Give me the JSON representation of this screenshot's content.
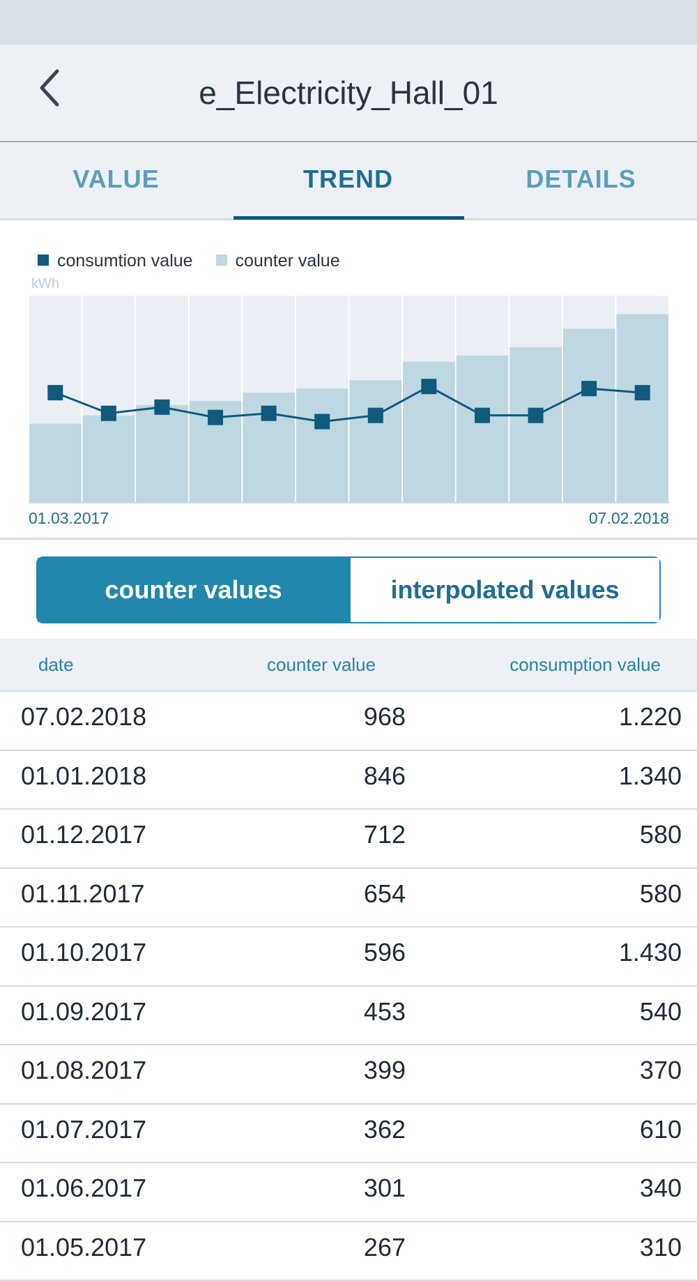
{
  "header": {
    "title": "e_Electricity_Hall_01",
    "back_icon": "chevron-left-icon"
  },
  "tabs": [
    {
      "label": "VALUE",
      "active": false
    },
    {
      "label": "TREND",
      "active": true
    },
    {
      "label": "DETAILS",
      "active": false
    }
  ],
  "chart": {
    "legend": [
      {
        "label": "consumtion value",
        "color": "#0f5a7d"
      },
      {
        "label": "counter value",
        "color": "#bed7e0"
      }
    ],
    "unit": "kWh",
    "start_date": "01.03.2017",
    "end_date": "07.02.2018"
  },
  "chart_data": {
    "type": "bar",
    "xlabel": "",
    "ylabel": "kWh",
    "series": [
      {
        "name": "counter value",
        "type": "bar",
        "color": "#bed7e0",
        "values": [
          38,
          42,
          47,
          49,
          53,
          55,
          59,
          68,
          71,
          75,
          84,
          91
        ]
      },
      {
        "name": "consumtion value",
        "type": "line",
        "color": "#0f5a7d",
        "values": [
          53,
          43,
          46,
          41,
          43,
          39,
          42,
          56,
          42,
          42,
          55,
          53
        ]
      }
    ],
    "ylim": [
      0,
      100
    ],
    "x_range": [
      "01.03.2017",
      "07.02.2018"
    ],
    "grid": false
  },
  "segmented": {
    "left_label": "counter values",
    "right_label": "interpolated values",
    "active": "counter values"
  },
  "table": {
    "headers": {
      "date": "date",
      "counter": "counter value",
      "consumption": "consumption value"
    },
    "rows": [
      {
        "date": "07.02.2018",
        "counter": "968",
        "consumption": "1.220"
      },
      {
        "date": "01.01.2018",
        "counter": "846",
        "consumption": "1.340"
      },
      {
        "date": "01.12.2017",
        "counter": "712",
        "consumption": "580"
      },
      {
        "date": "01.11.2017",
        "counter": "654",
        "consumption": "580"
      },
      {
        "date": "01.10.2017",
        "counter": "596",
        "consumption": "1.430"
      },
      {
        "date": "01.09.2017",
        "counter": "453",
        "consumption": "540"
      },
      {
        "date": "01.08.2017",
        "counter": "399",
        "consumption": "370"
      },
      {
        "date": "01.07.2017",
        "counter": "362",
        "consumption": "610"
      },
      {
        "date": "01.06.2017",
        "counter": "301",
        "consumption": "340"
      },
      {
        "date": "01.05.2017",
        "counter": "267",
        "consumption": "310"
      }
    ]
  }
}
